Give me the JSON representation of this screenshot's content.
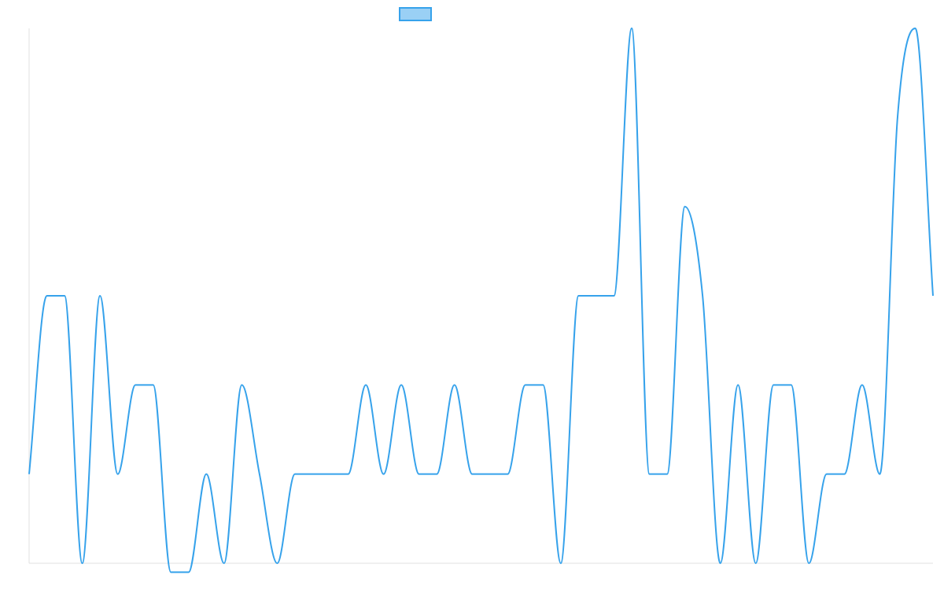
{
  "chart_data": {
    "type": "line",
    "x": [
      1,
      2,
      3,
      4,
      5,
      6,
      7,
      8,
      9,
      10,
      11,
      12,
      13,
      14,
      15,
      16,
      17,
      18,
      19,
      20,
      21,
      22,
      23,
      24,
      25,
      26,
      27,
      28,
      29,
      30,
      31,
      32,
      33,
      34,
      35,
      36,
      37,
      38,
      39,
      40,
      41,
      42,
      43,
      44,
      45,
      46,
      47,
      48,
      49,
      50,
      51,
      52
    ],
    "series": [
      {
        "name": "",
        "values": [
          1,
          3,
          3,
          0,
          3,
          1,
          2,
          2,
          -0.1,
          -0.1,
          1,
          0,
          2,
          1,
          0,
          1,
          1,
          1,
          1,
          2,
          1,
          2,
          1,
          1,
          2,
          1,
          1,
          1,
          2,
          2,
          0,
          3,
          3,
          3,
          6,
          1,
          1,
          4,
          3,
          0,
          2,
          0,
          2,
          2,
          0,
          1,
          1,
          2,
          1,
          5,
          6,
          3
        ]
      }
    ],
    "ylim": [
      0,
      6
    ],
    "grid": false,
    "legend": "top-center",
    "colors": {
      "line": "#36a2eb",
      "legend_fill": "#9ad0f5",
      "axis": "#e0e0e0"
    }
  }
}
